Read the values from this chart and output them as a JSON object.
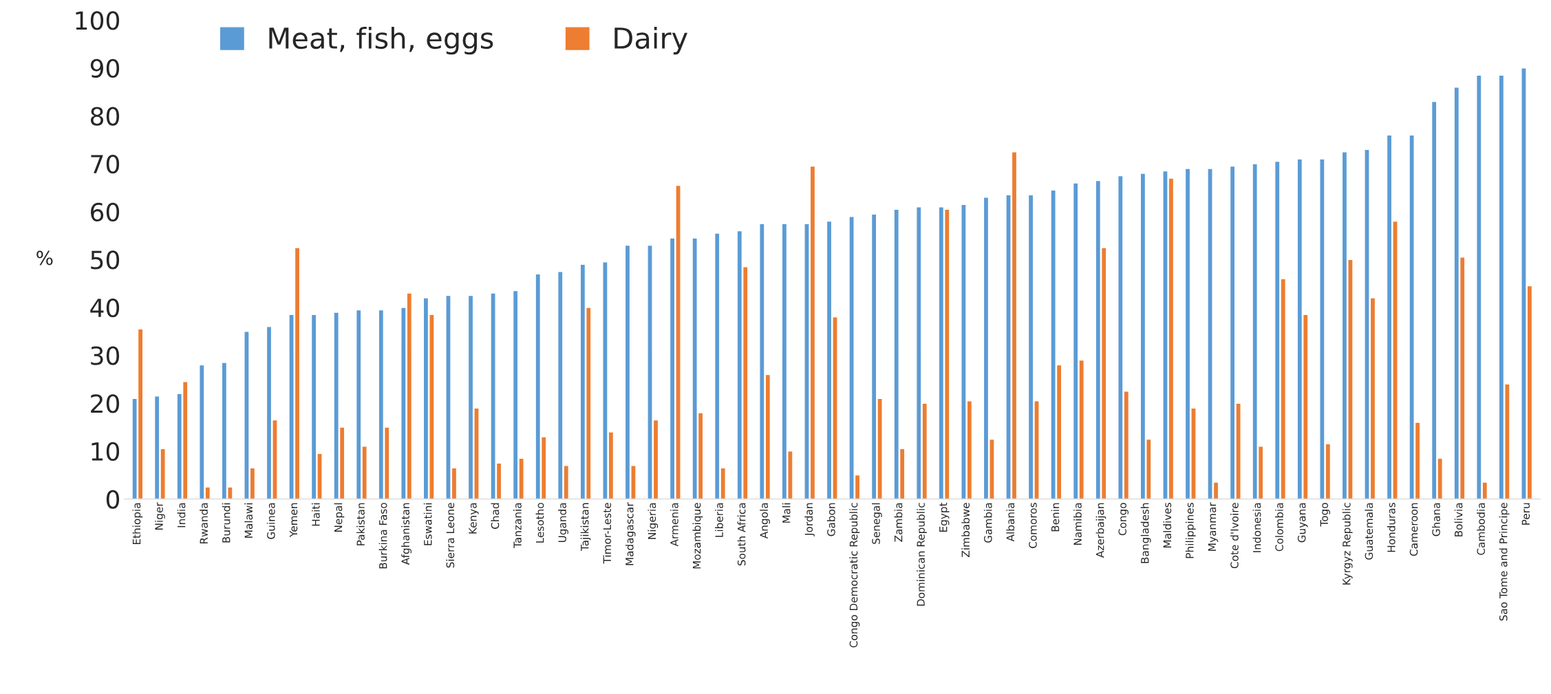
{
  "chart_data": {
    "type": "bar",
    "ylabel": "%",
    "categories": [
      "Ethiopia",
      "Niger",
      "India",
      "Rwanda",
      "Burundi",
      "Malawi",
      "Guinea",
      "Yemen",
      "Haiti",
      "Nepal",
      "Pakistan",
      "Burkina Faso",
      "Afghanistan",
      "Eswatini",
      "Sierra Leone",
      "Kenya",
      "Chad",
      "Tanzania",
      "Lesotho",
      "Uganda",
      "Tajikistan",
      "Timor-Leste",
      "Madagascar",
      "Nigeria",
      "Armenia",
      "Mozambique",
      "Liberia",
      "South Africa",
      "Angola",
      "Mali",
      "Jordan",
      "Gabon",
      "Congo Democratic Republic",
      "Senegal",
      "Zambia",
      "Dominican Republic",
      "Egypt",
      "Zimbabwe",
      "Gambia",
      "Albania",
      "Comoros",
      "Benin",
      "Namibia",
      "Azerbaijan",
      "Congo",
      "Bangladesh",
      "Maldives",
      "Philippines",
      "Myanmar",
      "Cote d'Ivoire",
      "Indonesia",
      "Colombia",
      "Guyana",
      "Togo",
      "Kyrgyz Republic",
      "Guatemala",
      "Honduras",
      "Cameroon",
      "Ghana",
      "Bolivia",
      "Cambodia",
      "Sao Tome and Principe",
      "Peru"
    ],
    "series": [
      {
        "name": "Meat, fish, eggs",
        "color": "#5b9bd5",
        "values": [
          21,
          21.5,
          22,
          28,
          28.5,
          35,
          36,
          38.5,
          38.5,
          39,
          39.5,
          39.5,
          40,
          42,
          42.5,
          42.5,
          43,
          43.5,
          47,
          47.5,
          49,
          49.5,
          53,
          53,
          54.5,
          54.5,
          55.5,
          56,
          57.5,
          57.5,
          57.5,
          58,
          59,
          59.5,
          60.5,
          61,
          61,
          61.5,
          63,
          63.5,
          63.5,
          64.5,
          66,
          66.5,
          67.5,
          68,
          68.5,
          69,
          69,
          69.5,
          70,
          70.5,
          71,
          71,
          72.5,
          73,
          76,
          76,
          83,
          86,
          88.5,
          88.5,
          90
        ]
      },
      {
        "name": "Dairy",
        "color": "#ed7d31",
        "values": [
          35.5,
          10.5,
          24.5,
          2.5,
          2.5,
          6.5,
          16.5,
          52.5,
          9.5,
          15,
          11,
          15,
          43,
          38.5,
          6.5,
          19,
          7.5,
          8.5,
          13,
          7,
          40,
          14,
          7,
          16.5,
          65.5,
          18,
          6.5,
          48.5,
          26,
          10,
          69.5,
          38,
          5,
          21,
          10.5,
          20,
          60.5,
          20.5,
          12.5,
          72.5,
          20.5,
          28,
          29,
          52.5,
          22.5,
          12.5,
          67,
          19,
          3.5,
          20,
          11,
          46,
          38.5,
          11.5,
          50,
          42,
          58,
          16,
          8.5,
          50.5,
          3.5,
          24,
          44.5
        ]
      }
    ],
    "ylim": [
      0,
      100
    ],
    "yticks": [
      0,
      10,
      20,
      30,
      40,
      50,
      60,
      70,
      80,
      90,
      100
    ],
    "grid": false,
    "legend": "top left"
  }
}
